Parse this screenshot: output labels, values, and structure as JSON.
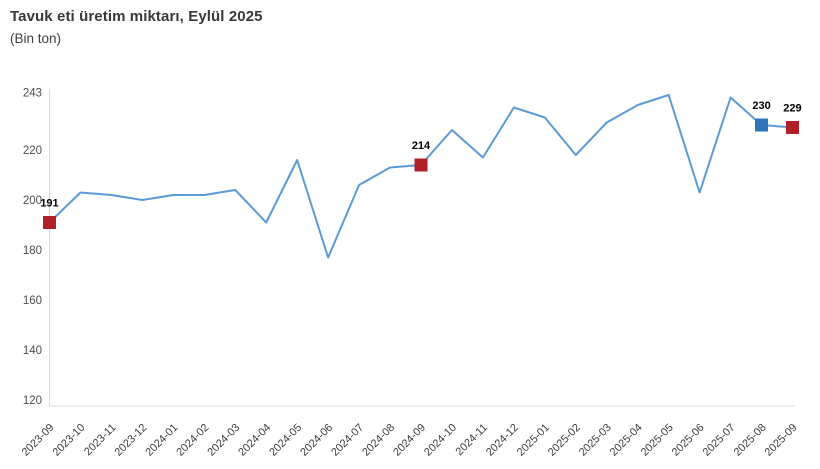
{
  "header": {
    "title": "Tavuk eti üretim miktarı, Eylül 2025",
    "subtitle": "(Bin ton)"
  },
  "chart_data": {
    "type": "line",
    "title": "Tavuk eti üretim miktarı, Eylül 2025",
    "subtitle": "(Bin ton)",
    "unit": "Bin ton",
    "x": [
      "2023-09",
      "2023-10",
      "2023-11",
      "2023-12",
      "2024-01",
      "2024-02",
      "2024-03",
      "2024-04",
      "2024-05",
      "2024-06",
      "2024-07",
      "2024-08",
      "2024-09",
      "2024-10",
      "2024-11",
      "2024-12",
      "2025-01",
      "2025-02",
      "2025-03",
      "2025-04",
      "2025-05",
      "2025-06",
      "2025-07",
      "2025-08",
      "2025-09"
    ],
    "values": [
      191,
      203,
      202,
      200,
      202,
      202,
      204,
      191,
      216,
      177,
      206,
      213,
      214,
      228,
      217,
      237,
      233,
      218,
      231,
      238,
      242,
      203,
      241,
      230,
      229
    ],
    "labeled_points": [
      {
        "month": "2023-09",
        "label": "191",
        "value": 191,
        "marker_color": "#b01e28"
      },
      {
        "month": "2024-09",
        "label": "214",
        "value": 214,
        "marker_color": "#b01e28"
      },
      {
        "month": "2025-08",
        "label": "230",
        "value": 230,
        "marker_color": "#2e75b6"
      },
      {
        "month": "2025-09",
        "label": "229",
        "value": 229,
        "marker_color": "#b01e28"
      }
    ],
    "y_ticks": [
      243,
      220,
      200,
      180,
      160,
      140,
      120
    ],
    "ylim": [
      120,
      243
    ],
    "xlabel": "",
    "ylabel": "",
    "line_color": "#5b9bd5",
    "axis_color": "#d9d9d9",
    "grid": false,
    "legend": false
  }
}
